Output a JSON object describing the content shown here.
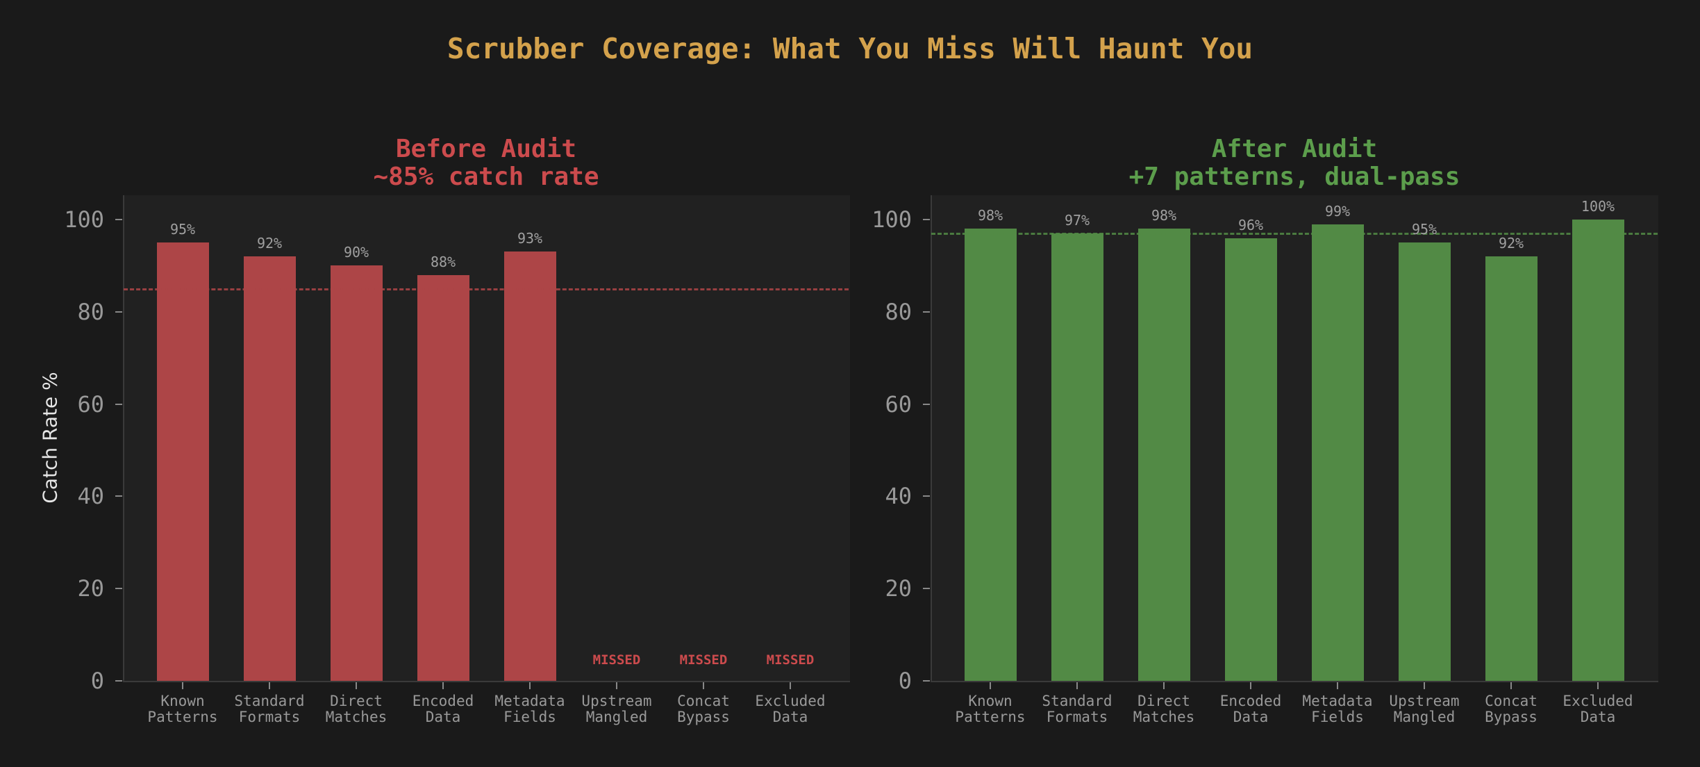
{
  "title": "Scrubber Coverage: What You Miss Will Haunt You",
  "colors": {
    "background": "#1a1a1a",
    "plot_background": "#212121",
    "title": "#d4a24c",
    "before": "#ad4547",
    "before_title": "#cc4b4d",
    "after": "#528a45",
    "after_title": "#5c9e4c",
    "tick_text": "#999999"
  },
  "y_axis_label": "Catch Rate %",
  "y_ticks": [
    "0",
    "20",
    "40",
    "60",
    "80",
    "100"
  ],
  "panels": [
    {
      "title_line1": "Before Audit",
      "title_line2": "~85% catch rate",
      "categories": [
        {
          "line1": "Known",
          "line2": "Patterns"
        },
        {
          "line1": "Standard",
          "line2": "Formats"
        },
        {
          "line1": "Direct",
          "line2": "Matches"
        },
        {
          "line1": "Encoded",
          "line2": "Data"
        },
        {
          "line1": "Metadata",
          "line2": "Fields"
        },
        {
          "line1": "Upstream",
          "line2": "Mangled"
        },
        {
          "line1": "Concat",
          "line2": "Bypass"
        },
        {
          "line1": "Excluded",
          "line2": "Data"
        }
      ],
      "labels": [
        "95%",
        "92%",
        "90%",
        "88%",
        "93%",
        "MISSED",
        "MISSED",
        "MISSED"
      ]
    },
    {
      "title_line1": "After Audit",
      "title_line2": "+7 patterns, dual-pass",
      "categories": [
        {
          "line1": "Known",
          "line2": "Patterns"
        },
        {
          "line1": "Standard",
          "line2": "Formats"
        },
        {
          "line1": "Direct",
          "line2": "Matches"
        },
        {
          "line1": "Encoded",
          "line2": "Data"
        },
        {
          "line1": "Metadata",
          "line2": "Fields"
        },
        {
          "line1": "Upstream",
          "line2": "Mangled"
        },
        {
          "line1": "Concat",
          "line2": "Bypass"
        },
        {
          "line1": "Excluded",
          "line2": "Data"
        }
      ],
      "labels": [
        "98%",
        "97%",
        "98%",
        "96%",
        "99%",
        "95%",
        "92%",
        "100%"
      ]
    }
  ],
  "chart_data": [
    {
      "type": "bar",
      "title": "Before Audit\n~85% catch rate",
      "categories": [
        "Known Patterns",
        "Standard Formats",
        "Direct Matches",
        "Encoded Data",
        "Metadata Fields",
        "Upstream Mangled",
        "Concat Bypass",
        "Excluded Data"
      ],
      "values": [
        95,
        92,
        90,
        88,
        93,
        0,
        0,
        0
      ],
      "annotations": [
        "95%",
        "92%",
        "90%",
        "88%",
        "93%",
        "MISSED",
        "MISSED",
        "MISSED"
      ],
      "reference_line": {
        "y": 85,
        "style": "dashed",
        "color": "#ad4547"
      },
      "xlabel": "",
      "ylabel": "Catch Rate %",
      "ylim": [
        0,
        105
      ],
      "yticks": [
        0,
        20,
        40,
        60,
        80,
        100
      ],
      "grid": false,
      "color": "#ad4547"
    },
    {
      "type": "bar",
      "title": "After Audit\n+7 patterns, dual-pass",
      "categories": [
        "Known Patterns",
        "Standard Formats",
        "Direct Matches",
        "Encoded Data",
        "Metadata Fields",
        "Upstream Mangled",
        "Concat Bypass",
        "Excluded Data"
      ],
      "values": [
        98,
        97,
        98,
        96,
        99,
        95,
        92,
        100
      ],
      "annotations": [
        "98%",
        "97%",
        "98%",
        "96%",
        "99%",
        "95%",
        "92%",
        "100%"
      ],
      "reference_line": {
        "y": 97,
        "style": "dashed",
        "color": "#528a45"
      },
      "xlabel": "",
      "ylabel": "",
      "ylim": [
        0,
        105
      ],
      "yticks": [
        0,
        20,
        40,
        60,
        80,
        100
      ],
      "grid": false,
      "color": "#528a45"
    }
  ]
}
